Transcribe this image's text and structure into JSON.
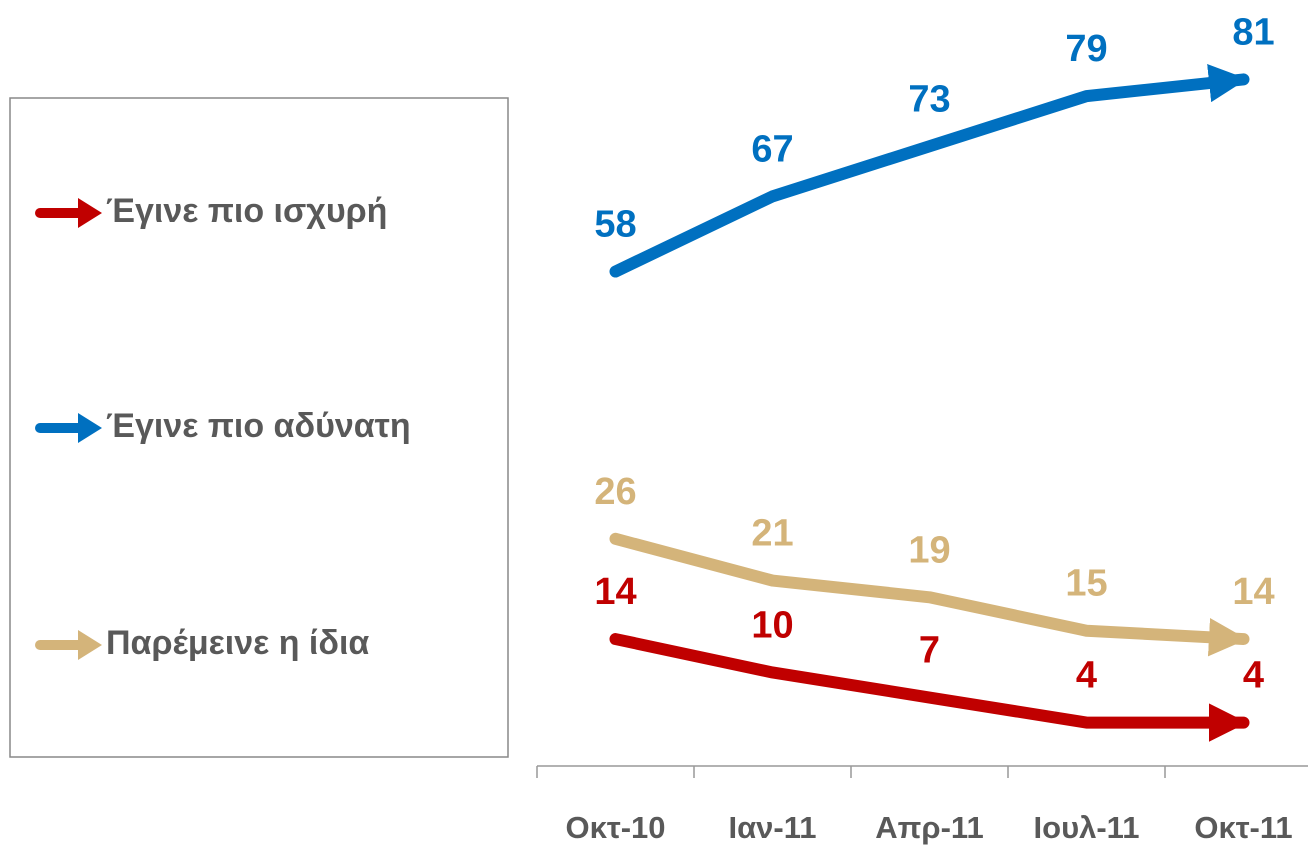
{
  "chart_data": {
    "type": "line",
    "categories": [
      "Οκτ-10",
      "Ιαν-11",
      "Απρ-11",
      "Ιουλ-11",
      "Οκτ-11"
    ],
    "series": [
      {
        "name": "Έγινε πιο ισχυρή",
        "color": "#c00000",
        "values": [
          14,
          10,
          7,
          4,
          4
        ]
      },
      {
        "name": "Έγινε πιο αδύνατη",
        "color": "#0070c0",
        "values": [
          58,
          67,
          73,
          79,
          81
        ]
      },
      {
        "name": "Παρέμεινε η ίδια",
        "color": "#d4b47a",
        "values": [
          26,
          21,
          19,
          15,
          14
        ]
      }
    ],
    "ylim": [
      0,
      85
    ]
  }
}
